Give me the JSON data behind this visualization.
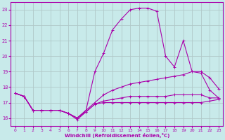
{
  "title": "",
  "xlabel": "Windchill (Refroidissement éolien,°C)",
  "ylabel": "",
  "xlim": [
    -0.5,
    23.5
  ],
  "ylim": [
    15.5,
    23.5
  ],
  "xticks": [
    0,
    1,
    2,
    3,
    4,
    5,
    6,
    7,
    8,
    9,
    10,
    11,
    12,
    13,
    14,
    15,
    16,
    17,
    18,
    19,
    20,
    21,
    22,
    23
  ],
  "yticks": [
    16,
    17,
    18,
    19,
    20,
    21,
    22,
    23
  ],
  "bg_color": "#c8eaea",
  "grid_color": "#b0c8c8",
  "line_color": "#aa00aa",
  "lines": [
    {
      "x": [
        0,
        1,
        2,
        3,
        4,
        5,
        6,
        7,
        8,
        9,
        10,
        11,
        12,
        13,
        14,
        15,
        16,
        17,
        18,
        19,
        20,
        21,
        22,
        23
      ],
      "y": [
        17.6,
        17.4,
        16.5,
        16.5,
        16.5,
        16.5,
        16.3,
        15.9,
        16.4,
        16.9,
        17.0,
        17.0,
        17.0,
        17.0,
        17.0,
        17.0,
        17.0,
        17.0,
        17.0,
        17.0,
        17.0,
        17.0,
        17.1,
        17.2
      ]
    },
    {
      "x": [
        0,
        1,
        2,
        3,
        4,
        5,
        6,
        7,
        8,
        9,
        10,
        11,
        12,
        13,
        14,
        15,
        16,
        17,
        18,
        19,
        20,
        21,
        22,
        23
      ],
      "y": [
        17.6,
        17.4,
        16.5,
        16.5,
        16.5,
        16.5,
        16.3,
        16.0,
        16.4,
        16.9,
        17.1,
        17.2,
        17.3,
        17.4,
        17.4,
        17.4,
        17.4,
        17.4,
        17.5,
        17.5,
        17.5,
        17.5,
        17.3,
        17.3
      ]
    },
    {
      "x": [
        0,
        1,
        2,
        3,
        4,
        5,
        6,
        7,
        8,
        9,
        10,
        11,
        12,
        13,
        14,
        15,
        16,
        17,
        18,
        19,
        20,
        21,
        22,
        23
      ],
      "y": [
        17.6,
        17.4,
        16.5,
        16.5,
        16.5,
        16.5,
        16.3,
        16.0,
        16.5,
        17.0,
        17.5,
        17.8,
        18.0,
        18.2,
        18.3,
        18.4,
        18.5,
        18.6,
        18.7,
        18.8,
        19.0,
        19.0,
        18.6,
        17.9
      ]
    },
    {
      "x": [
        0,
        1,
        2,
        3,
        4,
        5,
        6,
        7,
        8,
        9,
        10,
        11,
        12,
        13,
        14,
        15,
        16,
        17,
        18,
        19,
        20,
        21,
        22,
        23
      ],
      "y": [
        17.6,
        17.4,
        16.5,
        16.5,
        16.5,
        16.5,
        16.3,
        16.0,
        16.5,
        19.0,
        20.2,
        21.7,
        22.4,
        23.0,
        23.1,
        23.1,
        22.9,
        20.0,
        19.3,
        21.0,
        19.0,
        18.9,
        17.8,
        17.3
      ]
    }
  ]
}
